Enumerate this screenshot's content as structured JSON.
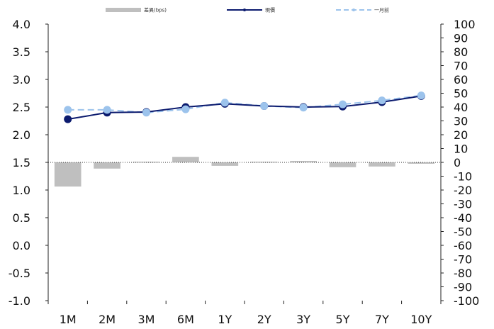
{
  "chart_data": {
    "type": "bar+line",
    "categories": [
      "1M",
      "2M",
      "3M",
      "6M",
      "1Y",
      "2Y",
      "3Y",
      "5Y",
      "7Y",
      "10Y"
    ],
    "y_left": {
      "range": [
        -1.0,
        4.0
      ],
      "ticks": [
        "-1.0",
        "-0.5",
        "0.0",
        "0.5",
        "1.0",
        "1.5",
        "2.0",
        "2.5",
        "3.0",
        "3.5",
        "4.0"
      ]
    },
    "y_right": {
      "range": [
        -100,
        100
      ],
      "ticks": [
        "-100",
        "-90",
        "-80",
        "-70",
        "-60",
        "-50",
        "-40",
        "-30",
        "-20",
        "-10",
        "0",
        "10",
        "20",
        "30",
        "40",
        "50",
        "60",
        "70",
        "80",
        "90",
        "100"
      ]
    },
    "series": [
      {
        "name": "差異(bps)",
        "kind": "bar",
        "axis": "right",
        "color": "#bfbfbf",
        "values": [
          -17.5,
          -4.5,
          0.5,
          4.0,
          -2.5,
          0.5,
          1.0,
          -3.5,
          -3.0,
          -1.0
        ]
      },
      {
        "name": "現價",
        "kind": "line",
        "axis": "left",
        "color": "#0b1a6e",
        "values": [
          2.28,
          2.4,
          2.41,
          2.5,
          2.56,
          2.52,
          2.5,
          2.51,
          2.59,
          2.7
        ]
      },
      {
        "name": "一月前",
        "kind": "line-dashed",
        "axis": "left",
        "color": "#9cc3ec",
        "values": [
          2.45,
          2.45,
          2.4,
          2.46,
          2.58,
          2.52,
          2.49,
          2.55,
          2.62,
          2.71
        ]
      }
    ],
    "legend_position": "top-center",
    "grid": false
  }
}
